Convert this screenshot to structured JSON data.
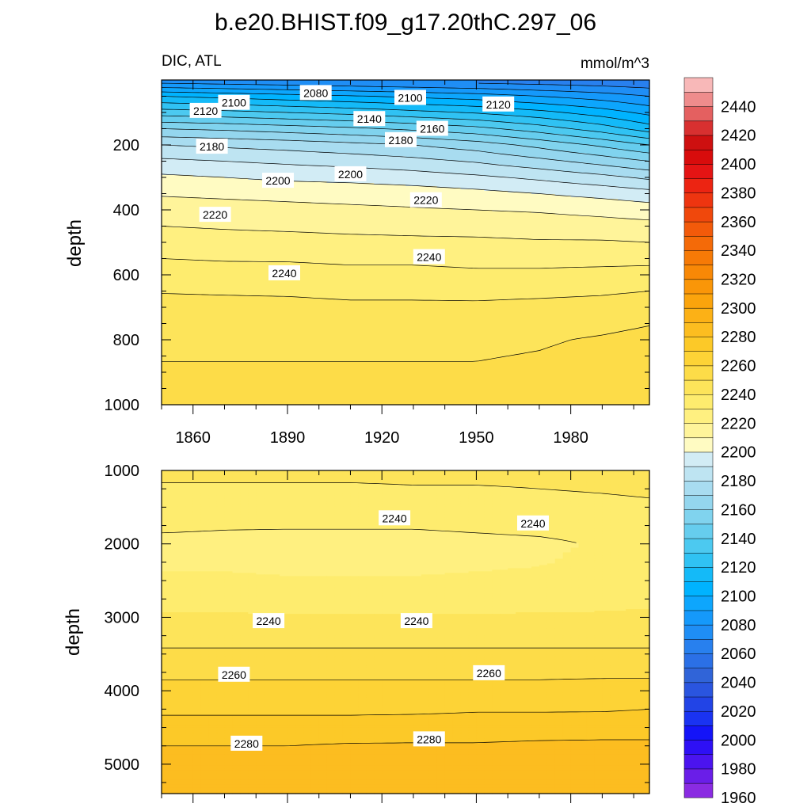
{
  "title": "b.e20.BHIST.f09_g17.20thC.297_06",
  "chart_data": {
    "type": "heatmap",
    "subtitle_left": "DIC, ATL",
    "subtitle_right": "mmol/m^3",
    "ylabel": "depth",
    "x_ticks": [
      1860,
      1890,
      1920,
      1950,
      1980
    ],
    "xlim": [
      1850,
      2005
    ],
    "panels": [
      {
        "name": "upper",
        "ylim": [
          0,
          1000
        ],
        "y_ticks": [
          200,
          400,
          600,
          800,
          1000
        ],
        "x": [
          1850,
          1870,
          1890,
          1910,
          1930,
          1950,
          1970,
          1990,
          2005
        ],
        "depth": [
          10,
          50,
          100,
          150,
          200,
          250,
          300,
          350,
          400,
          450,
          500,
          550,
          600,
          700,
          800,
          900,
          1000
        ],
        "values": [
          [
            2080,
            2078,
            2076,
            2074,
            2072,
            2070,
            2068,
            2066,
            2064
          ],
          [
            2110,
            2107,
            2104,
            2101,
            2098,
            2095,
            2090,
            2085,
            2080
          ],
          [
            2135,
            2133,
            2130,
            2127,
            2123,
            2119,
            2113,
            2105,
            2097
          ],
          [
            2160,
            2158,
            2155,
            2152,
            2148,
            2143,
            2135,
            2125,
            2115
          ],
          [
            2180,
            2178,
            2176,
            2173,
            2170,
            2165,
            2157,
            2148,
            2140
          ],
          [
            2192,
            2190,
            2188,
            2186,
            2183,
            2179,
            2173,
            2166,
            2160
          ],
          [
            2202,
            2200,
            2198,
            2197,
            2195,
            2192,
            2188,
            2183,
            2178
          ],
          [
            2209,
            2208,
            2207,
            2206,
            2205,
            2203,
            2200,
            2197,
            2194
          ],
          [
            2215,
            2214,
            2213,
            2212,
            2211,
            2210,
            2209,
            2207,
            2205
          ],
          [
            2220,
            2219,
            2218,
            2217,
            2217,
            2216,
            2215,
            2214,
            2213
          ],
          [
            2225,
            2224,
            2224,
            2223,
            2222,
            2222,
            2221,
            2221,
            2220
          ],
          [
            2230,
            2229,
            2229,
            2228,
            2228,
            2227,
            2227,
            2227,
            2227
          ],
          [
            2236,
            2235,
            2234,
            2233,
            2233,
            2232,
            2232,
            2233,
            2234
          ],
          [
            2243,
            2243,
            2243,
            2242,
            2242,
            2242,
            2243,
            2244,
            2246
          ],
          [
            2248,
            2248,
            2248,
            2248,
            2248,
            2248,
            2249,
            2251,
            2253
          ],
          [
            2251,
            2251,
            2251,
            2251,
            2251,
            2251,
            2252,
            2254,
            2256
          ],
          [
            2252,
            2252,
            2252,
            2252,
            2252,
            2252,
            2253,
            2255,
            2257
          ]
        ],
        "contour_labels": [
          {
            "value": "2080",
            "x": 1899,
            "depth": 40
          },
          {
            "value": "2100",
            "x": 1873,
            "depth": 70
          },
          {
            "value": "2120",
            "x": 1864,
            "depth": 95
          },
          {
            "value": "2100",
            "x": 1929,
            "depth": 55
          },
          {
            "value": "2120",
            "x": 1957,
            "depth": 75
          },
          {
            "value": "2140",
            "x": 1916,
            "depth": 120
          },
          {
            "value": "2160",
            "x": 1936,
            "depth": 150
          },
          {
            "value": "2180",
            "x": 1866,
            "depth": 205
          },
          {
            "value": "2180",
            "x": 1926,
            "depth": 185
          },
          {
            "value": "2200",
            "x": 1887,
            "depth": 310
          },
          {
            "value": "2200",
            "x": 1910,
            "depth": 290
          },
          {
            "value": "2220",
            "x": 1867,
            "depth": 415
          },
          {
            "value": "2220",
            "x": 1934,
            "depth": 370
          },
          {
            "value": "2240",
            "x": 1889,
            "depth": 595
          },
          {
            "value": "2240",
            "x": 1935,
            "depth": 545
          }
        ]
      },
      {
        "name": "lower",
        "ylim": [
          1000,
          5400
        ],
        "y_ticks": [
          1000,
          2000,
          3000,
          4000,
          5000
        ],
        "x": [
          1850,
          1870,
          1890,
          1910,
          1930,
          1950,
          1970,
          1990,
          2005
        ],
        "depth": [
          1000,
          1250,
          1500,
          1750,
          2000,
          2250,
          2500,
          2750,
          3000,
          3250,
          3500,
          3750,
          4000,
          4250,
          4500,
          4750,
          5000,
          5250,
          5400
        ],
        "values": [
          [
            2244,
            2244,
            2244,
            2244,
            2244,
            2244,
            2244,
            2245,
            2246
          ],
          [
            2238,
            2238,
            2238,
            2238,
            2239,
            2239,
            2240,
            2241,
            2242
          ],
          [
            2234,
            2234,
            2234,
            2234,
            2235,
            2235,
            2236,
            2237,
            2238
          ],
          [
            2232,
            2231,
            2231,
            2231,
            2231,
            2232,
            2233,
            2234,
            2235
          ],
          [
            2227,
            2227,
            2226,
            2226,
            2226,
            2227,
            2228,
            2231,
            2234
          ],
          [
            2228,
            2228,
            2227,
            2227,
            2227,
            2228,
            2229,
            2233,
            2236
          ],
          [
            2232,
            2232,
            2231,
            2231,
            2231,
            2232,
            2233,
            2236,
            2238
          ],
          [
            2237,
            2237,
            2236,
            2236,
            2236,
            2236,
            2237,
            2238,
            2239
          ],
          [
            2241,
            2241,
            2241,
            2241,
            2241,
            2241,
            2241,
            2241,
            2241
          ],
          [
            2246,
            2246,
            2246,
            2246,
            2246,
            2246,
            2246,
            2246,
            2246
          ],
          [
            2252,
            2252,
            2252,
            2252,
            2252,
            2252,
            2252,
            2252,
            2252
          ],
          [
            2258,
            2258,
            2258,
            2258,
            2258,
            2258,
            2258,
            2258,
            2258
          ],
          [
            2263,
            2263,
            2263,
            2263,
            2263,
            2263,
            2263,
            2264,
            2264
          ],
          [
            2268,
            2268,
            2268,
            2268,
            2268,
            2269,
            2269,
            2269,
            2270
          ],
          [
            2274,
            2274,
            2274,
            2274,
            2275,
            2275,
            2275,
            2276,
            2276
          ],
          [
            2280,
            2280,
            2280,
            2281,
            2281,
            2281,
            2282,
            2282,
            2282
          ],
          [
            2284,
            2284,
            2284,
            2285,
            2285,
            2285,
            2286,
            2286,
            2286
          ],
          [
            2287,
            2287,
            2287,
            2288,
            2288,
            2288,
            2289,
            2289,
            2289
          ],
          [
            2288,
            2288,
            2288,
            2289,
            2289,
            2289,
            2290,
            2290,
            2290
          ]
        ],
        "contour_labels": [
          {
            "value": "2240",
            "x": 1924,
            "depth": 1650
          },
          {
            "value": "2240",
            "x": 1968,
            "depth": 1720
          },
          {
            "value": "2240",
            "x": 1884,
            "depth": 3050
          },
          {
            "value": "2240",
            "x": 1931,
            "depth": 3050
          },
          {
            "value": "2260",
            "x": 1873,
            "depth": 3780
          },
          {
            "value": "2260",
            "x": 1954,
            "depth": 3760
          },
          {
            "value": "2280",
            "x": 1877,
            "depth": 4720
          },
          {
            "value": "2280",
            "x": 1935,
            "depth": 4660
          }
        ]
      }
    ],
    "colorbar": {
      "levels": [
        1960,
        1970,
        1980,
        1990,
        2000,
        2010,
        2020,
        2030,
        2040,
        2050,
        2060,
        2070,
        2080,
        2090,
        2100,
        2110,
        2120,
        2130,
        2140,
        2150,
        2160,
        2170,
        2180,
        2190,
        2200,
        2210,
        2220,
        2230,
        2240,
        2250,
        2260,
        2270,
        2280,
        2290,
        2300,
        2310,
        2320,
        2330,
        2340,
        2350,
        2360,
        2370,
        2380,
        2390,
        2400,
        2410,
        2420,
        2430,
        2440,
        2450
      ],
      "labels": [
        1960,
        1980,
        2000,
        2020,
        2040,
        2060,
        2080,
        2100,
        2120,
        2140,
        2160,
        2180,
        2200,
        2220,
        2240,
        2260,
        2280,
        2300,
        2320,
        2340,
        2360,
        2380,
        2400,
        2420,
        2440
      ],
      "colors": [
        "#8a2be2",
        "#6a1ee8",
        "#4b14ef",
        "#2e10f5",
        "#1414f8",
        "#1a33f2",
        "#2244e6",
        "#2a55df",
        "#3064d8",
        "#2b70e6",
        "#2880ee",
        "#1f8ef5",
        "#1599fb",
        "#0da6fd",
        "#00b3ff",
        "#14baf8",
        "#30c2f3",
        "#4cc9f0",
        "#66cdee",
        "#80d3ee",
        "#94d6ee",
        "#a8dcf0",
        "#bee4f2",
        "#d2ecf5",
        "#fffbc2",
        "#fff49a",
        "#fff080",
        "#feec6e",
        "#fde45a",
        "#fddc48",
        "#fdd336",
        "#fcc928",
        "#fcbd20",
        "#fcb116",
        "#fba40c",
        "#fa9608",
        "#f88806",
        "#f67a06",
        "#f46a08",
        "#f25a0a",
        "#f0480c",
        "#ee3510",
        "#ec2412",
        "#e41414",
        "#d80c0c",
        "#ce1010",
        "#d83030",
        "#e46060",
        "#ee8c8c",
        "#f8b8b8"
      ]
    }
  }
}
